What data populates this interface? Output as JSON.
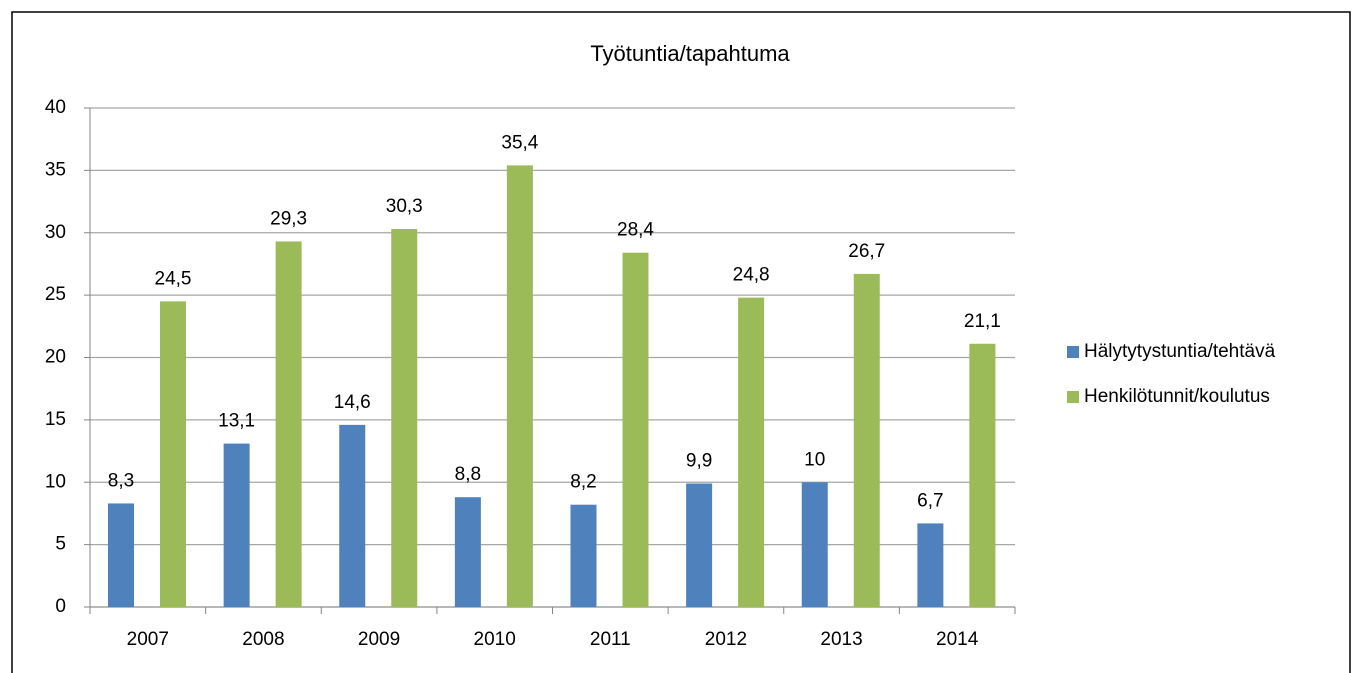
{
  "chart_data": {
    "type": "bar",
    "title": "Työtuntia/tapahtuma",
    "categories": [
      "2007",
      "2008",
      "2009",
      "2010",
      "2011",
      "2012",
      "2013",
      "2014"
    ],
    "series": [
      {
        "name": "Hälytytystuntia/tehtävä",
        "color": "#4f81bd",
        "values": [
          8.3,
          13.1,
          14.6,
          8.8,
          8.2,
          9.9,
          10,
          6.7
        ],
        "value_labels": [
          "8,3",
          "13,1",
          "14,6",
          "8,8",
          "8,2",
          "9,9",
          "10",
          "6,7"
        ]
      },
      {
        "name": "Henkilötunnit/koulutus",
        "color": "#9bbb59",
        "values": [
          24.5,
          29.3,
          30.3,
          35.4,
          28.4,
          24.8,
          26.7,
          21.1
        ],
        "value_labels": [
          "24,5",
          "29,3",
          "30,3",
          "35,4",
          "28,4",
          "24,8",
          "26,7",
          "21,1"
        ]
      }
    ],
    "ylim": [
      0,
      40
    ],
    "yticks": [
      0,
      5,
      10,
      15,
      20,
      25,
      30,
      35,
      40
    ],
    "grid": true,
    "legend": "right"
  }
}
